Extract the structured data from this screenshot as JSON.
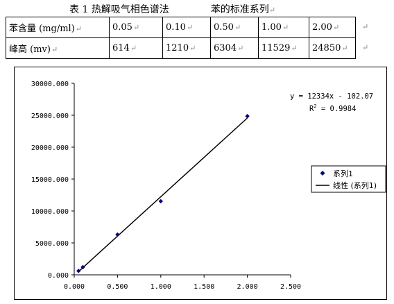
{
  "caption": {
    "left": "表 1 热解吸气相色谱法",
    "right": "苯的标准系列",
    "mark": "↵"
  },
  "table": {
    "mark": "↵",
    "headers": [
      "苯含量 (mg/ml)",
      "峰高 (mv)"
    ],
    "rows": [
      [
        "0.05",
        "0.10",
        "0.50",
        "1.00",
        "2.00"
      ],
      [
        "614",
        "1210",
        "6304",
        "11529",
        "24850"
      ]
    ]
  },
  "chart_data": {
    "type": "scatter",
    "x_ticks": [
      "0.000",
      "0.500",
      "1.000",
      "1.500",
      "2.000",
      "2.500"
    ],
    "y_ticks": [
      "0.000",
      "5000.000",
      "10000.000",
      "15000.000",
      "20000.000",
      "25000.000",
      "30000.000"
    ],
    "xlim": [
      0,
      2.5
    ],
    "ylim": [
      0,
      30000
    ],
    "grid": false,
    "legend_position": "right",
    "series": [
      {
        "name": "系列1",
        "kind": "scatter",
        "color": "#000080",
        "x": [
          0.05,
          0.1,
          0.5,
          1.0,
          2.0
        ],
        "y": [
          614,
          1210,
          6304,
          11529,
          24850
        ]
      },
      {
        "name": "线性 (系列1)",
        "kind": "trendline",
        "color": "#000000",
        "slope": 12334,
        "intercept": -102.07,
        "x_range": [
          0.05,
          2.0
        ]
      }
    ],
    "annotations": {
      "equation": "y = 12334x - 102.07",
      "r_squared_prefix": "R",
      "r_squared_sup": "2",
      "r_squared_value": " = 0.9984"
    }
  }
}
